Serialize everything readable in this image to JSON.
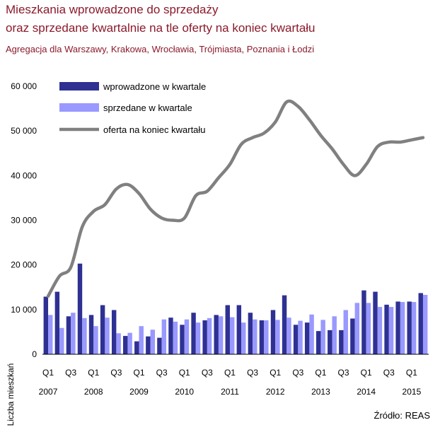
{
  "title_line1": "Mieszkania wprowadzone do sprzedaży",
  "title_line2": "oraz sprzedane kwartalnie na tle oferty na koniec kwartału",
  "subtitle": "Agregacja dla  Warszawy, Krakowa, Wrocławia, Trójmiasta, Poznania i Łodzi",
  "source": "Źródło: REAS",
  "colors": {
    "title": "#8b1a2b",
    "introduced": "#2e3192",
    "sold": "#9999ff",
    "offer": "#808080"
  },
  "chart_data": {
    "type": "bar",
    "ylabel": "Liczba mieszkań",
    "ylim": [
      0,
      60000
    ],
    "yticks": [
      {
        "value": 0,
        "label": "0"
      },
      {
        "value": 10000,
        "label": "10 000"
      },
      {
        "value": 20000,
        "label": "20 000"
      },
      {
        "value": 30000,
        "label": "30 000"
      },
      {
        "value": 40000,
        "label": "40 000"
      },
      {
        "value": 50000,
        "label": "50 000"
      },
      {
        "value": 60000,
        "label": "60 000"
      }
    ],
    "legend_position": "top-left",
    "categories": [
      "2007 Q1",
      "2007 Q2",
      "2007 Q3",
      "2007 Q4",
      "2008 Q1",
      "2008 Q2",
      "2008 Q3",
      "2008 Q4",
      "2009 Q1",
      "2009 Q2",
      "2009 Q3",
      "2009 Q4",
      "2010 Q1",
      "2010 Q2",
      "2010 Q3",
      "2010 Q4",
      "2011 Q1",
      "2011 Q2",
      "2011 Q3",
      "2011 Q4",
      "2012 Q1",
      "2012 Q2",
      "2012 Q3",
      "2012 Q4",
      "2013 Q1",
      "2013 Q2",
      "2013 Q3",
      "2013 Q4",
      "2014 Q1",
      "2014 Q2",
      "2014 Q3",
      "2014 Q4",
      "2015 Q1",
      "2015 Q2"
    ],
    "quarter_labels": [
      {
        "index": 0,
        "label": "Q1"
      },
      {
        "index": 2,
        "label": "Q3"
      },
      {
        "index": 4,
        "label": "Q1"
      },
      {
        "index": 6,
        "label": "Q3"
      },
      {
        "index": 8,
        "label": "Q1"
      },
      {
        "index": 10,
        "label": "Q3"
      },
      {
        "index": 12,
        "label": "Q1"
      },
      {
        "index": 14,
        "label": "Q3"
      },
      {
        "index": 16,
        "label": "Q1"
      },
      {
        "index": 18,
        "label": "Q3"
      },
      {
        "index": 20,
        "label": "Q1"
      },
      {
        "index": 22,
        "label": "Q3"
      },
      {
        "index": 24,
        "label": "Q1"
      },
      {
        "index": 26,
        "label": "Q3"
      },
      {
        "index": 28,
        "label": "Q1"
      },
      {
        "index": 30,
        "label": "Q3"
      },
      {
        "index": 32,
        "label": "Q1"
      }
    ],
    "year_labels": [
      {
        "index": 0,
        "label": "2007"
      },
      {
        "index": 4,
        "label": "2008"
      },
      {
        "index": 8,
        "label": "2009"
      },
      {
        "index": 12,
        "label": "2010"
      },
      {
        "index": 16,
        "label": "2011"
      },
      {
        "index": 20,
        "label": "2012"
      },
      {
        "index": 24,
        "label": "2013"
      },
      {
        "index": 28,
        "label": "2014"
      },
      {
        "index": 32,
        "label": "2015"
      }
    ],
    "series": [
      {
        "name": "wprowadzone w kwartale",
        "type": "bar",
        "values": [
          12900,
          14000,
          8500,
          20300,
          8800,
          11000,
          9900,
          4100,
          2900,
          4000,
          3700,
          8200,
          6600,
          9300,
          7600,
          8800,
          11000,
          11000,
          9300,
          7600,
          9900,
          13200,
          6600,
          7100,
          5200,
          5400,
          5400,
          8000,
          14300,
          14000,
          11100,
          11800,
          11800,
          13700
        ]
      },
      {
        "name": "sprzedane w kwartale",
        "type": "bar",
        "values": [
          8800,
          5900,
          9300,
          8100,
          6300,
          8200,
          4700,
          4800,
          6300,
          5500,
          7800,
          7300,
          7800,
          7100,
          8100,
          8500,
          8300,
          7100,
          7800,
          7600,
          7700,
          8200,
          7500,
          8900,
          7700,
          8500,
          9900,
          11500,
          11500,
          10600,
          10600,
          11700,
          11700,
          13300
        ]
      },
      {
        "name": "oferta na koniec kwartału",
        "type": "line",
        "values": [
          13000,
          17500,
          19500,
          28500,
          32000,
          33500,
          37000,
          38000,
          36000,
          32500,
          30500,
          30000,
          30500,
          35500,
          36500,
          39500,
          42500,
          47000,
          48500,
          49500,
          52000,
          56500,
          55500,
          52500,
          49000,
          46000,
          42500,
          40000,
          42500,
          46500,
          47500,
          47500,
          48000,
          48500
        ]
      }
    ]
  }
}
